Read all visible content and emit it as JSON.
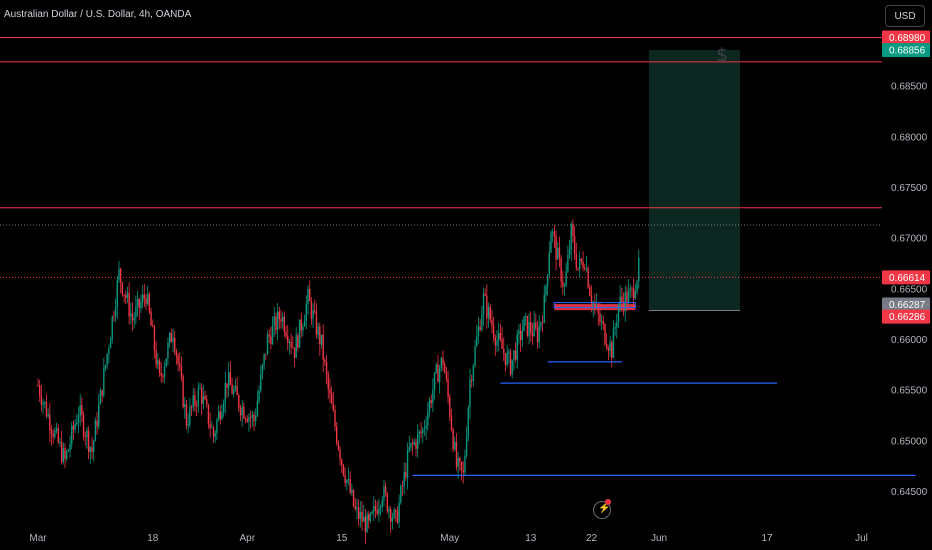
{
  "header": {
    "title": "Australian Dollar / U.S. Dollar, 4h, OANDA",
    "currency_button": "USD"
  },
  "icons": {
    "dollar": "dollar-icon",
    "flash": "flash-icon"
  },
  "colors": {
    "background": "#000000",
    "up": "#089981",
    "down": "#f23645",
    "resistance_line": "#f23645",
    "support_line": "#2962ff",
    "target_zone": "#0b2720",
    "grid_text": "#b2b5be"
  },
  "chart_data": {
    "type": "candlestick",
    "symbol": "AUDUSD",
    "timeframe": "4h",
    "ylim": [
      0.642,
      0.6935
    ],
    "y_ticks": [
      "0.64500",
      "0.65000",
      "0.65500",
      "0.66000",
      "0.66500",
      "0.67000",
      "0.67500",
      "0.68000",
      "0.68500"
    ],
    "x_ticks": [
      {
        "label": "Mar",
        "day": 0
      },
      {
        "label": "18",
        "day": 17
      },
      {
        "label": "Apr",
        "day": 31
      },
      {
        "label": "15",
        "day": 45
      },
      {
        "label": "May",
        "day": 61
      },
      {
        "label": "13",
        "day": 73
      },
      {
        "label": "22",
        "day": 82
      },
      {
        "label": "Jun",
        "day": 92
      },
      {
        "label": "17",
        "day": 108
      },
      {
        "label": "Jul",
        "day": 122
      }
    ],
    "price_labels": [
      {
        "text": "0.68980",
        "value": 0.6898,
        "color": "#f23645"
      },
      {
        "text": "0.68856",
        "value": 0.68856,
        "color": "#089981"
      },
      {
        "text": "0.66614",
        "value": 0.66614,
        "color": "#f23645"
      },
      {
        "text": "0.66287",
        "value": 0.66287,
        "color": "#787b86"
      },
      {
        "text": "0.66286",
        "value": 0.66286,
        "color": "#f23645"
      }
    ],
    "horizontal_lines": [
      {
        "value": 0.6898,
        "color": "#f23645",
        "style": "solid"
      },
      {
        "value": 0.6874,
        "color": "#f23645",
        "style": "solid"
      },
      {
        "value": 0.673,
        "color": "#f23645",
        "style": "solid"
      },
      {
        "value": 0.6713,
        "color": "#787b86",
        "style": "dotted"
      },
      {
        "value": 0.66614,
        "color": "#f23645",
        "style": "dotted"
      }
    ],
    "segments": [
      {
        "value": 0.6466,
        "x1": 55.5,
        "x2": 130,
        "color": "#2962ff"
      },
      {
        "value": 0.6557,
        "x1": 68.5,
        "x2": 109.5,
        "color": "#2962ff"
      },
      {
        "value": 0.6578,
        "x1": 75.5,
        "x2": 86.5,
        "color": "#2962ff"
      }
    ],
    "zones": [
      {
        "from_day": 90.5,
        "to_day": 104,
        "low": 0.66287,
        "high": 0.68856,
        "color": "#0b2720"
      },
      {
        "from_day": 76.5,
        "to_day": 88.5,
        "low": 0.6629,
        "high": 0.6635,
        "color": "#f23645"
      }
    ],
    "price_path": [
      [
        0,
        0.6555
      ],
      [
        2,
        0.6515
      ],
      [
        4,
        0.648
      ],
      [
        6,
        0.653
      ],
      [
        8,
        0.649
      ],
      [
        10,
        0.6575
      ],
      [
        12,
        0.6665
      ],
      [
        14,
        0.662
      ],
      [
        16,
        0.6645
      ],
      [
        18,
        0.656
      ],
      [
        20,
        0.661
      ],
      [
        22,
        0.652
      ],
      [
        24,
        0.655
      ],
      [
        26,
        0.6505
      ],
      [
        28,
        0.656
      ],
      [
        30,
        0.6535
      ],
      [
        32,
        0.652
      ],
      [
        34,
        0.66
      ],
      [
        36,
        0.6625
      ],
      [
        38,
        0.659
      ],
      [
        40,
        0.664
      ],
      [
        42,
        0.6595
      ],
      [
        43,
        0.655
      ],
      [
        45,
        0.648
      ],
      [
        47,
        0.643
      ],
      [
        49,
        0.6415
      ],
      [
        51,
        0.645
      ],
      [
        53,
        0.642
      ],
      [
        55,
        0.649
      ],
      [
        57,
        0.651
      ],
      [
        59,
        0.6565
      ],
      [
        60,
        0.658
      ],
      [
        61,
        0.653
      ],
      [
        62,
        0.6475
      ],
      [
        63,
        0.6465
      ],
      [
        64,
        0.656
      ],
      [
        66,
        0.664
      ],
      [
        68,
        0.66
      ],
      [
        70,
        0.6575
      ],
      [
        72,
        0.6615
      ],
      [
        74,
        0.6605
      ],
      [
        75,
        0.6635
      ],
      [
        76,
        0.671
      ],
      [
        77,
        0.668
      ],
      [
        78,
        0.665
      ],
      [
        79,
        0.6705
      ],
      [
        80,
        0.667
      ],
      [
        81,
        0.668
      ],
      [
        82,
        0.664
      ],
      [
        84,
        0.6605
      ],
      [
        85,
        0.659
      ],
      [
        86,
        0.6635
      ],
      [
        88,
        0.6645
      ],
      [
        89,
        0.667
      ]
    ]
  }
}
